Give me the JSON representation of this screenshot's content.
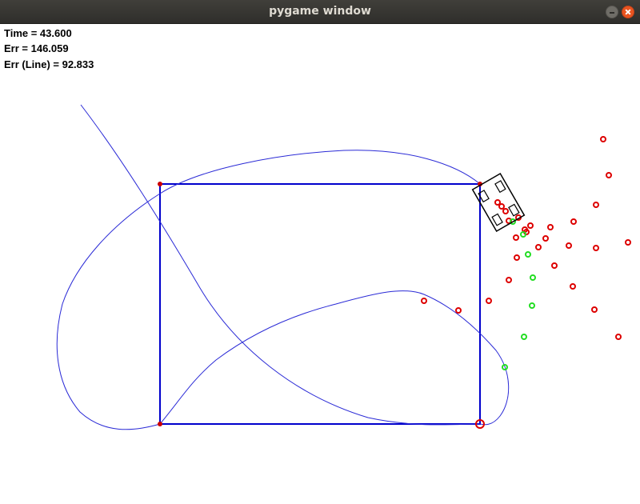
{
  "window": {
    "title": "pygame window"
  },
  "hud": {
    "time": "Time = 43.600",
    "err": "Err = 146.059",
    "err_line": "Err (Line) = 92.833"
  },
  "colors": {
    "path": "#0000cc",
    "curve": "#2a2ad6",
    "waypoint": "#cc0000",
    "landmark_red": "#dd0000",
    "landmark_green": "#22dd22",
    "robot": "#000000"
  }
}
